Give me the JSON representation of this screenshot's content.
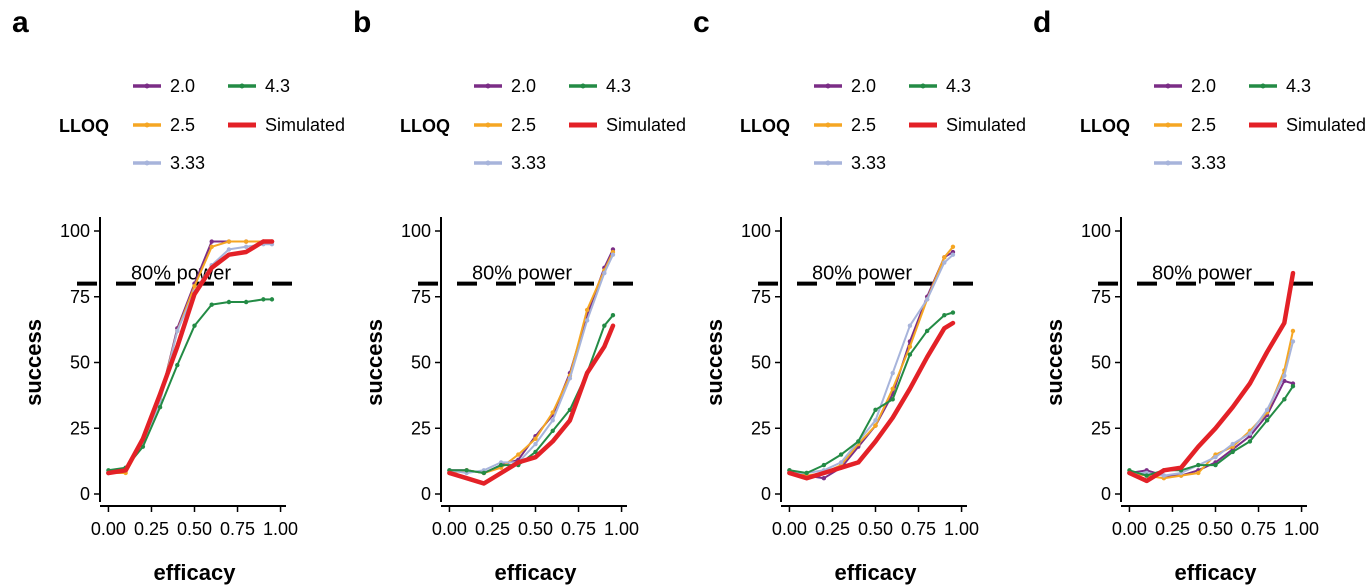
{
  "legend": {
    "title": "LLOQ",
    "entries": [
      {
        "label": "2.0",
        "color": "#7B2D86"
      },
      {
        "label": "4.3",
        "color": "#238B45"
      },
      {
        "label": "2.5",
        "color": "#F5A623"
      },
      {
        "label": "Simulated",
        "color": "#E32127"
      },
      {
        "label": "3.33",
        "color": "#A7B4DB"
      }
    ]
  },
  "chart_data": [
    {
      "panel": "a",
      "type": "line",
      "xlabel": "efficacy",
      "ylabel": "success",
      "xlim": [
        0,
        1
      ],
      "ylim": [
        0,
        100
      ],
      "x_ticks": [
        "0.00",
        "0.25",
        "0.50",
        "0.75",
        "1.00"
      ],
      "y_ticks": [
        "0",
        "25",
        "50",
        "75",
        "100"
      ],
      "reference_line": {
        "y": 80,
        "label": "80% power",
        "style": "dashed"
      },
      "series": [
        {
          "name": "2.0",
          "color": "#7B2D86",
          "x": [
            0,
            0.1,
            0.2,
            0.3,
            0.4,
            0.5,
            0.6,
            0.7,
            0.8,
            0.9,
            0.95
          ],
          "y": [
            8,
            9,
            20,
            36,
            63,
            80,
            96,
            96,
            96,
            96,
            96
          ]
        },
        {
          "name": "2.5",
          "color": "#F5A623",
          "x": [
            0,
            0.1,
            0.2,
            0.3,
            0.4,
            0.5,
            0.6,
            0.7,
            0.8,
            0.9,
            0.95
          ],
          "y": [
            8,
            8,
            20,
            36,
            62,
            79,
            94,
            96,
            96,
            96,
            96
          ]
        },
        {
          "name": "3.33",
          "color": "#A7B4DB",
          "x": [
            0,
            0.1,
            0.2,
            0.3,
            0.4,
            0.5,
            0.6,
            0.7,
            0.8,
            0.9,
            0.95
          ],
          "y": [
            8,
            9,
            20,
            35,
            62,
            77,
            87,
            93,
            94,
            95,
            95
          ]
        },
        {
          "name": "4.3",
          "color": "#238B45",
          "x": [
            0,
            0.1,
            0.2,
            0.3,
            0.4,
            0.5,
            0.6,
            0.7,
            0.8,
            0.9,
            0.95
          ],
          "y": [
            9,
            10,
            18,
            33,
            49,
            64,
            72,
            73,
            73,
            74,
            74
          ]
        },
        {
          "name": "Simulated",
          "color": "#E32127",
          "x": [
            0,
            0.1,
            0.2,
            0.3,
            0.4,
            0.5,
            0.6,
            0.7,
            0.8,
            0.9,
            0.95
          ],
          "y": [
            8,
            9,
            21,
            38,
            56,
            76,
            86,
            91,
            92,
            96,
            96
          ]
        }
      ]
    },
    {
      "panel": "b",
      "type": "line",
      "xlabel": "efficacy",
      "ylabel": "success",
      "xlim": [
        0,
        1
      ],
      "ylim": [
        0,
        100
      ],
      "x_ticks": [
        "0.00",
        "0.25",
        "0.50",
        "0.75",
        "1.00"
      ],
      "y_ticks": [
        "0",
        "25",
        "50",
        "75",
        "100"
      ],
      "reference_line": {
        "y": 80,
        "label": "80% power",
        "style": "dashed"
      },
      "series": [
        {
          "name": "2.0",
          "color": "#7B2D86",
          "x": [
            0,
            0.1,
            0.2,
            0.3,
            0.4,
            0.5,
            0.6,
            0.7,
            0.8,
            0.9,
            0.95
          ],
          "y": [
            9,
            9,
            8,
            11,
            13,
            22,
            30,
            46,
            68,
            86,
            93
          ]
        },
        {
          "name": "2.5",
          "color": "#F5A623",
          "x": [
            0,
            0.1,
            0.2,
            0.3,
            0.4,
            0.5,
            0.6,
            0.7,
            0.8,
            0.9,
            0.95
          ],
          "y": [
            8,
            9,
            8,
            10,
            15,
            21,
            31,
            45,
            70,
            85,
            92
          ]
        },
        {
          "name": "3.33",
          "color": "#A7B4DB",
          "x": [
            0,
            0.1,
            0.2,
            0.3,
            0.4,
            0.5,
            0.6,
            0.7,
            0.8,
            0.9,
            0.95
          ],
          "y": [
            9,
            8,
            9,
            12,
            12,
            19,
            28,
            44,
            66,
            84,
            91
          ]
        },
        {
          "name": "4.3",
          "color": "#238B45",
          "x": [
            0,
            0.1,
            0.2,
            0.3,
            0.4,
            0.5,
            0.6,
            0.7,
            0.8,
            0.9,
            0.95
          ],
          "y": [
            9,
            9,
            8,
            11,
            11,
            16,
            24,
            32,
            46,
            64,
            68
          ]
        },
        {
          "name": "Simulated",
          "color": "#E32127",
          "x": [
            0,
            0.1,
            0.2,
            0.3,
            0.4,
            0.5,
            0.6,
            0.7,
            0.8,
            0.9,
            0.95
          ],
          "y": [
            8,
            6,
            4,
            8,
            12,
            14,
            20,
            28,
            46,
            56,
            64
          ]
        }
      ]
    },
    {
      "panel": "c",
      "type": "line",
      "xlabel": "efficacy",
      "ylabel": "success",
      "xlim": [
        0,
        1
      ],
      "ylim": [
        0,
        100
      ],
      "x_ticks": [
        "0.00",
        "0.25",
        "0.50",
        "0.75",
        "1.00"
      ],
      "y_ticks": [
        "0",
        "25",
        "50",
        "75",
        "100"
      ],
      "reference_line": {
        "y": 80,
        "label": "80% power",
        "style": "dashed"
      },
      "series": [
        {
          "name": "2.0",
          "color": "#7B2D86",
          "x": [
            0,
            0.1,
            0.2,
            0.3,
            0.4,
            0.5,
            0.6,
            0.7,
            0.8,
            0.9,
            0.95
          ],
          "y": [
            9,
            7,
            6,
            10,
            18,
            26,
            38,
            58,
            75,
            90,
            92
          ]
        },
        {
          "name": "2.5",
          "color": "#F5A623",
          "x": [
            0,
            0.1,
            0.2,
            0.3,
            0.4,
            0.5,
            0.6,
            0.7,
            0.8,
            0.9,
            0.95
          ],
          "y": [
            8,
            7,
            8,
            11,
            19,
            26,
            40,
            56,
            74,
            90,
            94
          ]
        },
        {
          "name": "3.33",
          "color": "#A7B4DB",
          "x": [
            0,
            0.1,
            0.2,
            0.3,
            0.4,
            0.5,
            0.6,
            0.7,
            0.8,
            0.9,
            0.95
          ],
          "y": [
            8,
            8,
            9,
            12,
            20,
            28,
            46,
            64,
            74,
            88,
            91
          ]
        },
        {
          "name": "4.3",
          "color": "#238B45",
          "x": [
            0,
            0.1,
            0.2,
            0.3,
            0.4,
            0.5,
            0.6,
            0.7,
            0.8,
            0.9,
            0.95
          ],
          "y": [
            9,
            8,
            11,
            15,
            20,
            32,
            36,
            53,
            62,
            68,
            69
          ]
        },
        {
          "name": "Simulated",
          "color": "#E32127",
          "x": [
            0,
            0.1,
            0.2,
            0.3,
            0.4,
            0.5,
            0.6,
            0.7,
            0.8,
            0.9,
            0.95
          ],
          "y": [
            8,
            6,
            8,
            10,
            12,
            20,
            29,
            40,
            52,
            63,
            65
          ]
        }
      ]
    },
    {
      "panel": "d",
      "type": "line",
      "xlabel": "efficacy",
      "ylabel": "success",
      "xlim": [
        0,
        1
      ],
      "ylim": [
        0,
        100
      ],
      "x_ticks": [
        "0.00",
        "0.25",
        "0.50",
        "0.75",
        "1.00"
      ],
      "y_ticks": [
        "0",
        "25",
        "50",
        "75",
        "100"
      ],
      "reference_line": {
        "y": 80,
        "label": "80% power",
        "style": "dashed"
      },
      "series": [
        {
          "name": "2.0",
          "color": "#7B2D86",
          "x": [
            0,
            0.1,
            0.2,
            0.3,
            0.4,
            0.5,
            0.6,
            0.7,
            0.8,
            0.9,
            0.95
          ],
          "y": [
            8,
            9,
            7,
            7,
            9,
            12,
            17,
            22,
            30,
            43,
            42
          ]
        },
        {
          "name": "2.5",
          "color": "#F5A623",
          "x": [
            0,
            0.1,
            0.2,
            0.3,
            0.4,
            0.5,
            0.6,
            0.7,
            0.8,
            0.9,
            0.95
          ],
          "y": [
            8,
            7,
            6,
            7,
            8,
            15,
            18,
            24,
            31,
            47,
            62
          ]
        },
        {
          "name": "3.33",
          "color": "#A7B4DB",
          "x": [
            0,
            0.1,
            0.2,
            0.3,
            0.4,
            0.5,
            0.6,
            0.7,
            0.8,
            0.9,
            0.95
          ],
          "y": [
            8,
            8,
            7,
            8,
            11,
            14,
            19,
            23,
            32,
            45,
            58
          ]
        },
        {
          "name": "4.3",
          "color": "#238B45",
          "x": [
            0,
            0.1,
            0.2,
            0.3,
            0.4,
            0.5,
            0.6,
            0.7,
            0.8,
            0.9,
            0.95
          ],
          "y": [
            9,
            7,
            9,
            9,
            11,
            11,
            16,
            20,
            28,
            36,
            41
          ]
        },
        {
          "name": "Simulated",
          "color": "#E32127",
          "x": [
            0,
            0.1,
            0.2,
            0.3,
            0.4,
            0.5,
            0.6,
            0.7,
            0.8,
            0.9,
            0.95
          ],
          "y": [
            8,
            5,
            9,
            10,
            18,
            25,
            33,
            42,
            54,
            65,
            84
          ]
        }
      ]
    }
  ]
}
